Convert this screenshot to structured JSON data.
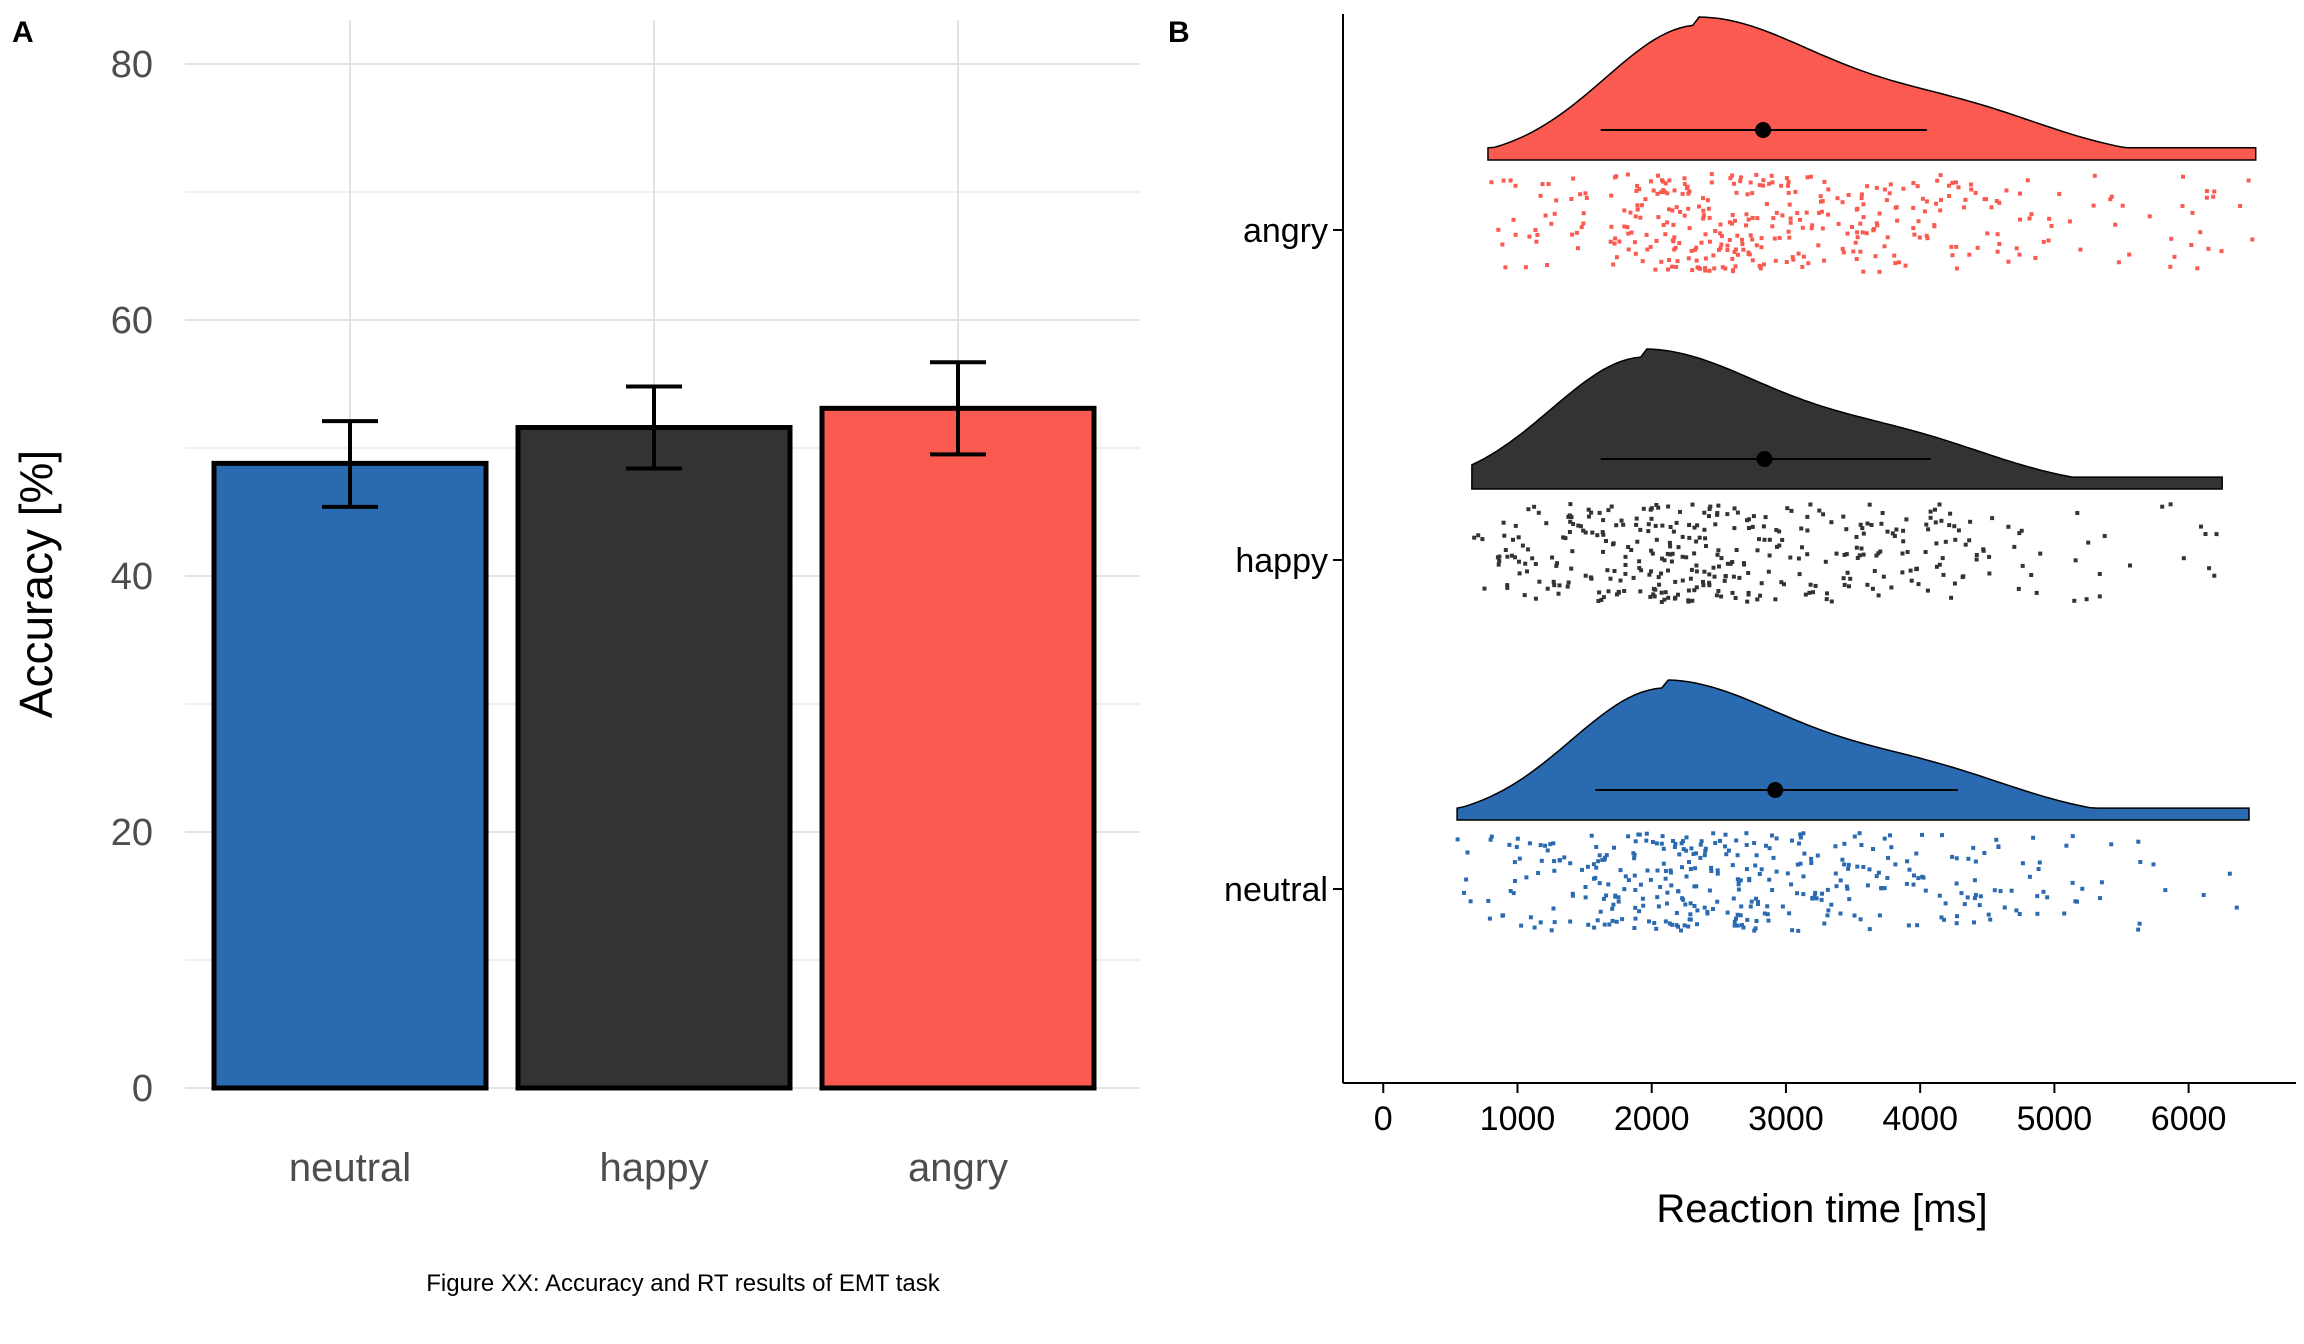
{
  "caption": "Figure XX: Accuracy and RT results of EMT task",
  "colors": {
    "neutral": "#2a6ab1",
    "happy": "#333333",
    "angry": "#fa5a4f"
  },
  "chart_data": [
    {
      "panel_label": "A",
      "type": "bar",
      "categories": [
        "neutral",
        "happy",
        "angry"
      ],
      "values": [
        48.8,
        51.6,
        53.1
      ],
      "error_low": [
        45.4,
        48.4,
        49.5
      ],
      "error_high": [
        52.1,
        54.8,
        56.7
      ],
      "ylabel": "Accuracy [%]",
      "xlabel": "",
      "ylim": [
        0,
        80
      ],
      "yticks": [
        0,
        20,
        40,
        60,
        80
      ],
      "grid": true
    },
    {
      "panel_label": "B",
      "type": "raincloud",
      "categories": [
        "neutral",
        "happy",
        "angry"
      ],
      "xlabel": "Reaction time [ms]",
      "xlim": [
        -300,
        6800
      ],
      "xticks": [
        0,
        1000,
        2000,
        3000,
        4000,
        5000,
        6000
      ],
      "grid": false,
      "series": [
        {
          "category": "neutral",
          "mean": 2920,
          "interval": [
            1580,
            4280
          ],
          "range": [
            550,
            6450
          ],
          "density_peak": 2100
        },
        {
          "category": "happy",
          "mean": 2840,
          "interval": [
            1620,
            4080
          ],
          "range": [
            660,
            6250
          ],
          "density_peak": 1950
        },
        {
          "category": "angry",
          "mean": 2830,
          "interval": [
            1620,
            4050
          ],
          "range": [
            780,
            6500
          ],
          "density_peak": 2350
        }
      ]
    }
  ]
}
